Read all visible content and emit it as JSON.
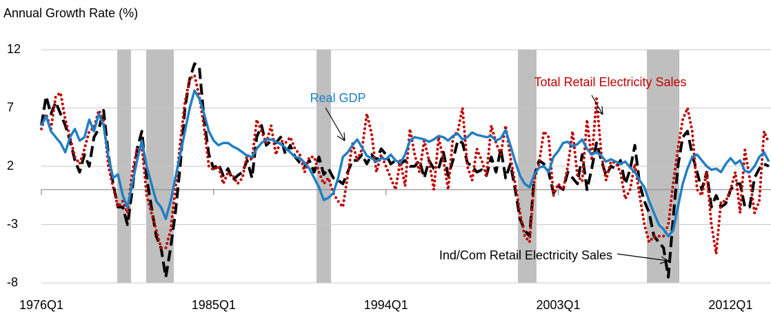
{
  "chart_data": {
    "type": "line",
    "y_axis_title": "Annual Growth Rate (%)",
    "ylim": [
      -8,
      12
    ],
    "yticks": [
      12,
      7,
      2,
      -3,
      -8
    ],
    "grid": true,
    "categories": [
      "1976Q1",
      null,
      null,
      null,
      null,
      null,
      null,
      null,
      null,
      null,
      null,
      null,
      null,
      null,
      null,
      null,
      null,
      null,
      null,
      null,
      null,
      null,
      null,
      null,
      null,
      null,
      null,
      null,
      null,
      null,
      null,
      null,
      null,
      null,
      null,
      null,
      "1985Q1",
      null,
      null,
      null,
      null,
      null,
      null,
      null,
      null,
      null,
      null,
      null,
      null,
      null,
      null,
      null,
      null,
      null,
      null,
      null,
      null,
      null,
      null,
      null,
      null,
      null,
      null,
      null,
      null,
      null,
      null,
      null,
      null,
      null,
      null,
      null,
      "1994Q1",
      null,
      null,
      null,
      null,
      null,
      null,
      null,
      null,
      null,
      null,
      null,
      null,
      null,
      null,
      null,
      null,
      null,
      null,
      null,
      null,
      null,
      null,
      null,
      null,
      null,
      null,
      null,
      null,
      null,
      null,
      null,
      null,
      null,
      null,
      null,
      "2003Q1",
      null,
      null,
      null,
      null,
      null,
      null,
      null,
      null,
      null,
      null,
      null,
      null,
      null,
      null,
      null,
      null,
      null,
      null,
      null,
      null,
      null,
      null,
      null,
      null,
      null,
      null,
      null,
      null,
      null,
      null,
      null,
      null,
      null,
      null,
      null,
      "2012Q1",
      null,
      null,
      null,
      null,
      null,
      null,
      null,
      null
    ],
    "series": [
      {
        "name": "Ind/Com Retail Electricity Sales",
        "color": "#000000",
        "style": "dashed",
        "values": [
          5.5,
          8,
          6.5,
          7.5,
          6.5,
          5.5,
          4.2,
          2.5,
          1.5,
          3,
          2,
          4.5,
          5.2,
          6.8,
          3,
          0.5,
          -1.5,
          -1.5,
          -3,
          0,
          3.5,
          5,
          1,
          -1.5,
          -4,
          -5,
          -7.5,
          -5,
          -2,
          2,
          7,
          9.5,
          10.8,
          10.5,
          6,
          3,
          1.8,
          2.2,
          1.2,
          1.8,
          0.8,
          1.2,
          1.5,
          2.5,
          1,
          4.5,
          5.5,
          3.8,
          4.2,
          4,
          4.5,
          3,
          3.8,
          2.8,
          2.3,
          2,
          2.5,
          1.5,
          2.8,
          1.3,
          1.8,
          1,
          0.8,
          0.5,
          1.5,
          2.5,
          2.5,
          3,
          2.2,
          3,
          2.5,
          3.5,
          3,
          2.2,
          2.5,
          2.2,
          2.5,
          2,
          2,
          2.5,
          1,
          2.5,
          1.8,
          1.8,
          3.2,
          1.2,
          2.5,
          4.2,
          4,
          2.3,
          2,
          1.5,
          1.7,
          1.2,
          2.8,
          1.5,
          3.5,
          1,
          2.2,
          0,
          -2.5,
          -3.5,
          -4,
          1.2,
          2.5,
          2.2,
          1.5,
          -0.3,
          0.3,
          0,
          1.5,
          1,
          0.5,
          3,
          0,
          1.8,
          4,
          2.5,
          1.2,
          2,
          1.8,
          2.5,
          0.5,
          1.7,
          3.8,
          0.5,
          -1,
          -2,
          -4,
          -4.5,
          -5,
          -7.5,
          -2.5,
          2,
          4.5,
          5,
          3,
          1.5,
          0,
          1.5,
          -1.5,
          -0.5,
          -1.5,
          -1.2,
          0,
          0.5,
          0.5,
          -1.5,
          -1.5,
          1,
          1.8,
          2.2,
          2
        ]
      },
      {
        "name": "Total Retail Electricity Sales",
        "color": "#c00000",
        "style": "dotted",
        "values": [
          5.2,
          6.5,
          5.2,
          8,
          8.3,
          6,
          4.5,
          2.8,
          2.2,
          3.5,
          5,
          5.3,
          6.8,
          6,
          2,
          0.2,
          -1.5,
          -1,
          -2,
          1.5,
          3.5,
          3.7,
          -0.5,
          -2,
          -3.5,
          -5,
          -5,
          -3.5,
          0,
          4,
          7.5,
          9.5,
          9.8,
          8,
          5.3,
          2,
          1.7,
          2,
          0.5,
          1.5,
          1.2,
          0.5,
          1,
          3,
          2.5,
          6,
          5,
          4,
          5.5,
          3,
          4.2,
          4,
          4.5,
          3.5,
          3,
          1.5,
          2.8,
          2.8,
          1.5,
          0.5,
          1,
          -0.3,
          -1,
          -1.5,
          1.2,
          4,
          2.5,
          3.5,
          6.5,
          4.8,
          1.5,
          3,
          2,
          1,
          0,
          2.5,
          0.3,
          5.2,
          3,
          1.5,
          4.2,
          2.5,
          0,
          4.5,
          2.5,
          0,
          4.5,
          5,
          7,
          2,
          0.8,
          3.5,
          2.5,
          1.2,
          5.5,
          4,
          3,
          5.5,
          2.8,
          0.5,
          -2,
          -4,
          -4.5,
          0.8,
          2.3,
          5,
          4.5,
          -0.5,
          0.5,
          0,
          2,
          5,
          1.2,
          0.7,
          6,
          2.5,
          7.8,
          3,
          0.8,
          2.4,
          2.3,
          1.5,
          -0.8,
          0,
          2.2,
          -0.5,
          -3,
          -4.5,
          -4,
          -4,
          -4,
          -3,
          0.5,
          3.5,
          6,
          7,
          5,
          0,
          -0.5,
          1.5,
          -3,
          -5.5,
          -1,
          -1,
          0,
          1.5,
          -2,
          3.4,
          1,
          -2,
          -1,
          5,
          4
        ]
      },
      {
        "name": "Real GDP",
        "color": "#1f7fc4",
        "style": "solid",
        "values": [
          5.5,
          6.3,
          5,
          4.5,
          4,
          3.2,
          4.5,
          5.2,
          4.2,
          4.5,
          6,
          5,
          6.5,
          5.5,
          2.8,
          1,
          1.3,
          -0.5,
          -1.5,
          0.5,
          2.5,
          4.2,
          2,
          0.5,
          -1,
          -1.5,
          -2.5,
          -1,
          1,
          3,
          5,
          7,
          8.5,
          7.8,
          6.5,
          5,
          4.2,
          3.8,
          4,
          4,
          3.7,
          3.5,
          3.2,
          2.9,
          2.8,
          3.5,
          4,
          4.3,
          4.3,
          4.1,
          3.9,
          3.6,
          3.2,
          2.8,
          2.7,
          2.3,
          1.8,
          1,
          0.2,
          -0.9,
          -0.7,
          -0.3,
          1,
          2.8,
          3.2,
          3.8,
          4.3,
          3.6,
          2.9,
          2.7,
          2.4,
          2.7,
          2.6,
          3,
          2.5,
          2.3,
          3,
          4.2,
          4.5,
          4.4,
          4.3,
          4.1,
          4.3,
          4.6,
          4.5,
          4.2,
          4.6,
          4.8,
          4.3,
          4.5,
          4.9,
          4.7,
          4.6,
          4.5,
          4.6,
          4.2,
          4.4,
          5.1,
          3.8,
          2.4,
          1.2,
          0.5,
          0.2,
          1.3,
          1.9,
          2,
          1.5,
          2.8,
          3.3,
          4,
          4.1,
          3.7,
          3.9,
          4.3,
          3.5,
          3,
          3.2,
          2.9,
          2.4,
          2.6,
          2.4,
          2.2,
          2.4,
          1.9,
          1.5,
          0.8,
          0.2,
          -1,
          -2,
          -3,
          -3.4,
          -4,
          -3.5,
          -1.5,
          0.5,
          1.8,
          2.8,
          3,
          2.5,
          2,
          1.7,
          1.8,
          1.5,
          2.2,
          2.7,
          2.2,
          2.5,
          1.6,
          1.5,
          2,
          2.8,
          3.2,
          2.4
        ]
      }
    ]
  }
}
